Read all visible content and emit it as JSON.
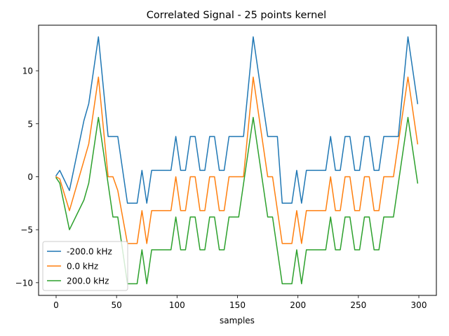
{
  "chart_data": {
    "type": "line",
    "title": "Correlated Signal - 25 points kernel",
    "xlabel": "samples",
    "ylabel": "",
    "xlim": [
      -14.5,
      314.5
    ],
    "ylim": [
      -11.2,
      14.3
    ],
    "xticks": [
      0,
      50,
      100,
      150,
      200,
      250,
      300
    ],
    "yticks": [
      -10,
      -5,
      0,
      5,
      10
    ],
    "grid": false,
    "legend_position": "lower-left",
    "series": [
      {
        "name": "-200.0 kHz",
        "color": "#1f77b4",
        "points": [
          [
            0,
            0.1
          ],
          [
            3,
            0.6
          ],
          [
            11,
            -1.3
          ],
          [
            23,
            5.3
          ],
          [
            27,
            6.9
          ],
          [
            35,
            13.2
          ],
          [
            43,
            3.8
          ],
          [
            51,
            3.8
          ],
          [
            59,
            -2.5
          ],
          [
            67,
            -2.5
          ],
          [
            71,
            0.6
          ],
          [
            75,
            -2.5
          ],
          [
            79,
            0.6
          ],
          [
            95,
            0.6
          ],
          [
            99,
            3.8
          ],
          [
            103,
            0.6
          ],
          [
            107,
            0.6
          ],
          [
            111,
            3.8
          ],
          [
            115,
            3.8
          ],
          [
            119,
            0.6
          ],
          [
            123,
            0.6
          ],
          [
            127,
            3.8
          ],
          [
            131,
            3.8
          ],
          [
            135,
            0.6
          ],
          [
            139,
            0.6
          ],
          [
            143,
            3.8
          ],
          [
            155,
            3.8
          ],
          [
            163,
            13.2
          ],
          [
            171,
            6.9
          ],
          [
            175,
            3.8
          ],
          [
            183,
            3.8
          ],
          [
            187,
            -2.5
          ],
          [
            195,
            -2.5
          ],
          [
            199,
            0.6
          ],
          [
            203,
            -2.5
          ],
          [
            207,
            0.6
          ],
          [
            223,
            0.6
          ],
          [
            227,
            3.8
          ],
          [
            231,
            0.6
          ],
          [
            235,
            0.6
          ],
          [
            239,
            3.8
          ],
          [
            243,
            3.8
          ],
          [
            247,
            0.6
          ],
          [
            251,
            0.6
          ],
          [
            255,
            3.8
          ],
          [
            259,
            3.8
          ],
          [
            263,
            0.6
          ],
          [
            267,
            0.6
          ],
          [
            271,
            3.8
          ],
          [
            283,
            3.8
          ],
          [
            291,
            13.2
          ],
          [
            299,
            6.9
          ]
        ]
      },
      {
        "name": "0.0 kHz",
        "color": "#ff7f0e",
        "points": [
          [
            0,
            0
          ],
          [
            3,
            -0.2
          ],
          [
            11,
            -3.2
          ],
          [
            27,
            3.1
          ],
          [
            35,
            9.4
          ],
          [
            43,
            0
          ],
          [
            47,
            0
          ],
          [
            51,
            -1.3
          ],
          [
            59,
            -6.3
          ],
          [
            67,
            -6.3
          ],
          [
            71,
            -3.2
          ],
          [
            75,
            -6.3
          ],
          [
            79,
            -3.2
          ],
          [
            95,
            -3.2
          ],
          [
            99,
            0
          ],
          [
            103,
            -3.2
          ],
          [
            107,
            -3.2
          ],
          [
            111,
            0
          ],
          [
            115,
            0
          ],
          [
            119,
            -3.2
          ],
          [
            123,
            -3.2
          ],
          [
            127,
            0
          ],
          [
            131,
            0
          ],
          [
            135,
            -3.2
          ],
          [
            139,
            -3.2
          ],
          [
            143,
            0
          ],
          [
            155,
            0
          ],
          [
            163,
            9.4
          ],
          [
            175,
            0
          ],
          [
            179,
            0
          ],
          [
            187,
            -6.3
          ],
          [
            195,
            -6.3
          ],
          [
            199,
            -3.2
          ],
          [
            203,
            -6.3
          ],
          [
            207,
            -3.2
          ],
          [
            223,
            -3.2
          ],
          [
            227,
            0
          ],
          [
            231,
            -3.2
          ],
          [
            235,
            -3.2
          ],
          [
            239,
            0
          ],
          [
            243,
            0
          ],
          [
            247,
            -3.2
          ],
          [
            251,
            -3.2
          ],
          [
            255,
            0
          ],
          [
            259,
            0
          ],
          [
            263,
            -3.2
          ],
          [
            267,
            -3.2
          ],
          [
            271,
            0
          ],
          [
            279,
            0
          ],
          [
            291,
            9.4
          ],
          [
            299,
            3.1
          ]
        ]
      },
      {
        "name": "200.0 kHz",
        "color": "#2ca02c",
        "points": [
          [
            0,
            -0.1
          ],
          [
            3,
            -0.6
          ],
          [
            11,
            -5.0
          ],
          [
            23,
            -2.2
          ],
          [
            27,
            -0.6
          ],
          [
            35,
            5.6
          ],
          [
            47,
            -3.8
          ],
          [
            51,
            -3.8
          ],
          [
            59,
            -10.1
          ],
          [
            67,
            -10.1
          ],
          [
            71,
            -6.9
          ],
          [
            75,
            -10.1
          ],
          [
            79,
            -6.9
          ],
          [
            95,
            -6.9
          ],
          [
            99,
            -3.8
          ],
          [
            103,
            -6.9
          ],
          [
            107,
            -6.9
          ],
          [
            111,
            -3.8
          ],
          [
            115,
            -3.8
          ],
          [
            119,
            -6.9
          ],
          [
            123,
            -6.9
          ],
          [
            127,
            -3.8
          ],
          [
            131,
            -3.8
          ],
          [
            135,
            -6.9
          ],
          [
            139,
            -6.9
          ],
          [
            143,
            -3.8
          ],
          [
            151,
            -3.8
          ],
          [
            163,
            5.6
          ],
          [
            175,
            -3.8
          ],
          [
            179,
            -3.8
          ],
          [
            187,
            -10.1
          ],
          [
            195,
            -10.1
          ],
          [
            199,
            -6.9
          ],
          [
            203,
            -10.1
          ],
          [
            207,
            -6.9
          ],
          [
            223,
            -6.9
          ],
          [
            227,
            -3.8
          ],
          [
            231,
            -6.9
          ],
          [
            235,
            -6.9
          ],
          [
            239,
            -3.8
          ],
          [
            243,
            -3.8
          ],
          [
            247,
            -6.9
          ],
          [
            251,
            -6.9
          ],
          [
            255,
            -3.8
          ],
          [
            259,
            -3.8
          ],
          [
            263,
            -6.9
          ],
          [
            267,
            -6.9
          ],
          [
            271,
            -3.8
          ],
          [
            279,
            -3.8
          ],
          [
            291,
            5.6
          ],
          [
            299,
            -0.6
          ]
        ]
      }
    ]
  }
}
